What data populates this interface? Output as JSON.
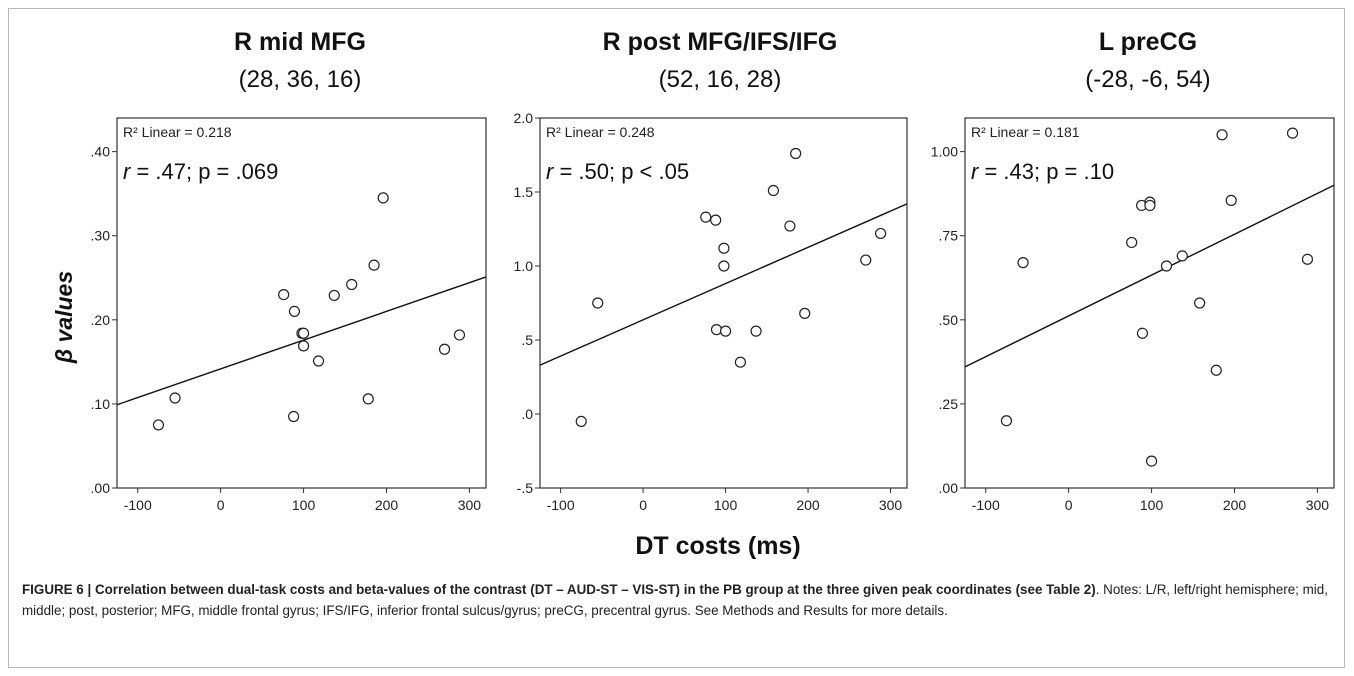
{
  "figure": {
    "xlabel": "DT costs (ms)",
    "ylabel": "β values",
    "caption_bold": "FIGURE 6 | Correlation between dual-task costs and beta-values of the contrast (DT – AUD-ST – VIS-ST) in the PB group at the three given peak coordinates (see Table 2)",
    "caption_rest": ". Notes: L/R, left/right hemisphere; mid, middle; post, posterior; MFG, middle frontal gyrus; IFS/IFG, inferior frontal sulcus/gyrus; preCG, precentral gyrus. See Methods and Results for more details."
  },
  "chart_data": [
    {
      "type": "scatter",
      "title": "R mid MFG",
      "subtitle": "(28, 36, 16)",
      "r2_label": "R² Linear = 0.218",
      "stat_r": "r",
      "stat_text": " = .47; p = .069",
      "xlim": [
        -125,
        320
      ],
      "ylim": [
        0,
        0.44
      ],
      "xticks": [
        -100,
        0,
        100,
        200,
        300
      ],
      "xtick_labels": [
        "-100",
        "0",
        "100",
        "200",
        "300"
      ],
      "yticks": [
        0,
        0.1,
        0.2,
        0.3,
        0.4
      ],
      "ytick_labels": [
        ".00",
        ".10",
        ".20",
        ".30",
        ".40"
      ],
      "points": [
        [
          -75,
          0.075
        ],
        [
          -55,
          0.107
        ],
        [
          76,
          0.23
        ],
        [
          88,
          0.085
        ],
        [
          89,
          0.21
        ],
        [
          98,
          0.184
        ],
        [
          100,
          0.184
        ],
        [
          100,
          0.169
        ],
        [
          118,
          0.151
        ],
        [
          137,
          0.229
        ],
        [
          158,
          0.242
        ],
        [
          178,
          0.106
        ],
        [
          185,
          0.265
        ],
        [
          196,
          0.345
        ],
        [
          270,
          0.165
        ],
        [
          288,
          0.182
        ]
      ],
      "fit_line": [
        [
          -125,
          0.099
        ],
        [
          320,
          0.251
        ]
      ]
    },
    {
      "type": "scatter",
      "title": "R post MFG/IFS/IFG",
      "subtitle": "(52, 16, 28)",
      "r2_label": "R² Linear = 0.248",
      "stat_r": "r",
      "stat_text": " = .50; p < .05",
      "xlim": [
        -125,
        320
      ],
      "ylim": [
        -0.5,
        2.0
      ],
      "xticks": [
        -100,
        0,
        100,
        200,
        300
      ],
      "xtick_labels": [
        "-100",
        "0",
        "100",
        "200",
        "300"
      ],
      "yticks": [
        -0.5,
        0,
        0.5,
        1.0,
        1.5,
        2.0
      ],
      "ytick_labels": [
        "-.5",
        ".0",
        ".5",
        "1.0",
        "1.5",
        "2.0"
      ],
      "points": [
        [
          -75,
          -0.05
        ],
        [
          -55,
          0.75
        ],
        [
          76,
          1.33
        ],
        [
          88,
          1.31
        ],
        [
          89,
          0.57
        ],
        [
          98,
          1.12
        ],
        [
          98,
          1.0
        ],
        [
          100,
          0.56
        ],
        [
          118,
          0.35
        ],
        [
          137,
          0.56
        ],
        [
          158,
          1.51
        ],
        [
          178,
          1.27
        ],
        [
          185,
          1.76
        ],
        [
          196,
          0.68
        ],
        [
          270,
          1.04
        ],
        [
          288,
          1.22
        ]
      ],
      "fit_line": [
        [
          -125,
          0.33
        ],
        [
          320,
          1.42
        ]
      ]
    },
    {
      "type": "scatter",
      "title": "L preCG",
      "subtitle": "(-28, -6, 54)",
      "r2_label": "R² Linear = 0.181",
      "stat_r": "r",
      "stat_text": " = .43; p = .10",
      "xlim": [
        -125,
        320
      ],
      "ylim": [
        0,
        1.1
      ],
      "xticks": [
        -100,
        0,
        100,
        200,
        300
      ],
      "xtick_labels": [
        "-100",
        "0",
        "100",
        "200",
        "300"
      ],
      "yticks": [
        0,
        0.25,
        0.5,
        0.75,
        1.0
      ],
      "ytick_labels": [
        ".00",
        ".25",
        ".50",
        ".75",
        "1.00"
      ],
      "points": [
        [
          -75,
          0.2
        ],
        [
          -55,
          0.67
        ],
        [
          76,
          0.73
        ],
        [
          88,
          0.84
        ],
        [
          89,
          0.46
        ],
        [
          98,
          0.85
        ],
        [
          98,
          0.84
        ],
        [
          100,
          0.08
        ],
        [
          118,
          0.66
        ],
        [
          137,
          0.69
        ],
        [
          158,
          0.55
        ],
        [
          178,
          0.35
        ],
        [
          185,
          1.05
        ],
        [
          196,
          0.855
        ],
        [
          270,
          1.055
        ],
        [
          288,
          0.68
        ]
      ],
      "fit_line": [
        [
          -125,
          0.36
        ],
        [
          320,
          0.9
        ]
      ]
    }
  ]
}
